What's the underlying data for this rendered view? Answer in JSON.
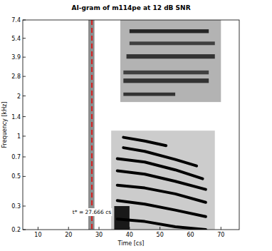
{
  "chart_data": {
    "type": "line",
    "title": "AI-gram of m114pe at 12 dB SNR",
    "x_label": "Time [cs]",
    "y_label": "Frequency [kHz]",
    "log": "y",
    "xlim": [
      5,
      76
    ],
    "ylim": [
      0.2,
      7.4
    ],
    "xticks": [
      10,
      20,
      30,
      40,
      50,
      60,
      70
    ],
    "yticks": [
      0.2,
      0.3,
      0.5,
      0.7,
      1,
      1.4,
      2,
      2.8,
      3.9,
      5.4,
      7.4
    ],
    "annotation": {
      "text": "t* = 27.666 cs",
      "x": 27.666,
      "color": "#d62020",
      "line_style": "dashed"
    },
    "regions": [
      {
        "x0": 26.5,
        "x1": 28.5,
        "y0": 0.2,
        "y1": 7.4,
        "intensity": 0.45
      },
      {
        "x0": 37,
        "x1": 70,
        "y0": 1.8,
        "y1": 7.4,
        "intensity": 0.3
      },
      {
        "x0": 38,
        "x1": 55,
        "y0": 2.0,
        "y1": 2.12,
        "intensity": 0.8
      },
      {
        "x0": 38,
        "x1": 66,
        "y0": 2.5,
        "y1": 2.7,
        "intensity": 0.8
      },
      {
        "x0": 38,
        "x1": 66,
        "y0": 2.9,
        "y1": 3.1,
        "intensity": 0.75
      },
      {
        "x0": 39,
        "x1": 68,
        "y0": 3.8,
        "y1": 4.1,
        "intensity": 0.8
      },
      {
        "x0": 40,
        "x1": 68,
        "y0": 4.8,
        "y1": 5.1,
        "intensity": 0.75
      },
      {
        "x0": 40,
        "x1": 66,
        "y0": 5.9,
        "y1": 6.3,
        "intensity": 0.85
      },
      {
        "x0": 34,
        "x1": 68,
        "y0": 0.2,
        "y1": 1.1,
        "intensity": 0.2
      },
      {
        "x0": 35,
        "x1": 40,
        "y0": 0.2,
        "y1": 0.3,
        "intensity": 0.9
      }
    ],
    "series": [
      {
        "color": "#000000",
        "x": [
          36,
          45,
          55,
          65
        ],
        "values": [
          0.24,
          0.23,
          0.21,
          0.2
        ]
      },
      {
        "color": "#000000",
        "x": [
          36,
          45,
          55,
          65
        ],
        "values": [
          0.33,
          0.31,
          0.28,
          0.25
        ]
      },
      {
        "color": "#000000",
        "x": [
          36,
          45,
          55,
          65
        ],
        "values": [
          0.43,
          0.41,
          0.37,
          0.32
        ]
      },
      {
        "color": "#000000",
        "x": [
          36,
          45,
          55,
          65
        ],
        "values": [
          0.55,
          0.52,
          0.46,
          0.4
        ]
      },
      {
        "color": "#000000",
        "x": [
          36,
          45,
          55,
          64
        ],
        "values": [
          0.68,
          0.64,
          0.56,
          0.48
        ]
      },
      {
        "color": "#000000",
        "x": [
          38,
          45,
          55,
          62
        ],
        "values": [
          0.82,
          0.77,
          0.67,
          0.6
        ]
      },
      {
        "color": "#000000",
        "x": [
          38,
          45,
          52
        ],
        "values": [
          0.98,
          0.92,
          0.85
        ]
      }
    ]
  }
}
